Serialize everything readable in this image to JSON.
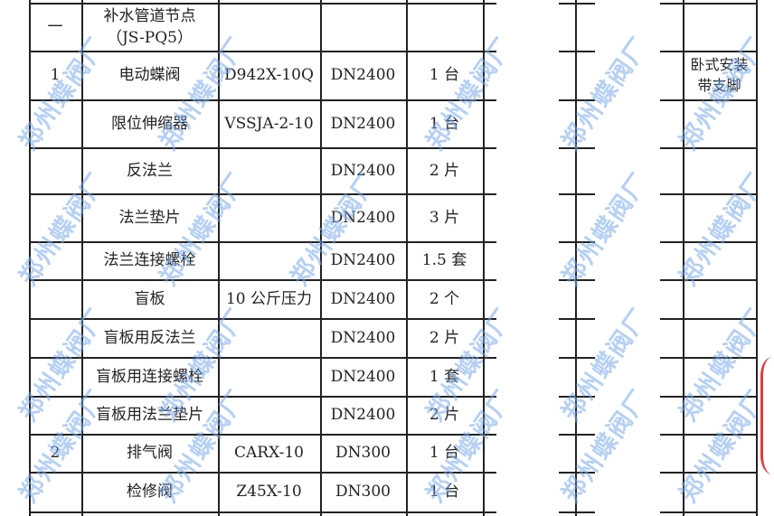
{
  "watermark": "郑州蝶阀厂",
  "stamp_color": "#e23b3b",
  "watermark_color": "#78aaeb",
  "rows": [
    {
      "no": "一",
      "name": "补水管道节点\n（JS-PQ5）",
      "model": "",
      "spec": "",
      "qty": "",
      "remark": ""
    },
    {
      "no": "1",
      "name": "电动蝶阀",
      "model": "D942X-10Q",
      "spec": "DN2400",
      "qty": "1 台",
      "remark": "卧式安装\n带支脚"
    },
    {
      "no": "",
      "name": "限位伸缩器",
      "model": "VSSJA-2-10",
      "spec": "DN2400",
      "qty": "1 台",
      "remark": ""
    },
    {
      "no": "",
      "name": "反法兰",
      "model": "",
      "spec": "DN2400",
      "qty": "2 片",
      "remark": ""
    },
    {
      "no": "",
      "name": "法兰垫片",
      "model": "",
      "spec": "DN2400",
      "qty": "3 片",
      "remark": ""
    },
    {
      "no": "",
      "name": "法兰连接螺栓",
      "model": "",
      "spec": "DN2400",
      "qty": "1.5 套",
      "remark": ""
    },
    {
      "no": "",
      "name": "盲板",
      "model": "10 公斤压力",
      "spec": "DN2400",
      "qty": "2 个",
      "remark": ""
    },
    {
      "no": "",
      "name": "盲板用反法兰",
      "model": "",
      "spec": "DN2400",
      "qty": "2 片",
      "remark": ""
    },
    {
      "no": "",
      "name": "盲板用连接螺栓",
      "model": "",
      "spec": "DN2400",
      "qty": "1 套",
      "remark": ""
    },
    {
      "no": "",
      "name": "盲板用法兰垫片",
      "model": "",
      "spec": "DN2400",
      "qty": "2 片",
      "remark": ""
    },
    {
      "no": "2",
      "name": "排气阀",
      "model": "CARX-10",
      "spec": "DN300",
      "qty": "1 台",
      "remark": ""
    },
    {
      "no": "",
      "name": "检修阀",
      "model": "Z45X-10",
      "spec": "DN300",
      "qty": "1 台",
      "remark": ""
    }
  ]
}
